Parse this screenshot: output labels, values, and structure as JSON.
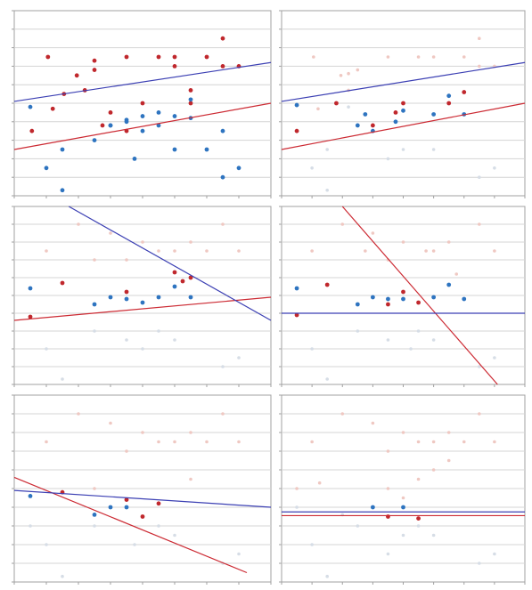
{
  "colors": {
    "red": "#c0282d",
    "blue": "#2e74c0",
    "red_faded": "#efc8c2",
    "blue_faded": "#d6dde6",
    "red_line": "#cc2a33",
    "blue_line": "#3b3fb3",
    "grid": "#d4d4d4",
    "frame": "#a0a0a0"
  },
  "chart_data": [
    {
      "type": "scatter",
      "panel": "top-left",
      "xlim": [
        0,
        16
      ],
      "ylim": [
        0,
        10
      ],
      "grid": true,
      "series": [
        {
          "color": "red",
          "points": [
            [
              1.1,
              3.5
            ],
            [
              2.1,
              7.5
            ],
            [
              2.4,
              4.7
            ],
            [
              3.1,
              5.5
            ],
            [
              3.9,
              6.5
            ],
            [
              4.4,
              5.7
            ],
            [
              5.0,
              6.8
            ],
            [
              5.0,
              7.3
            ],
            [
              5.5,
              3.8
            ],
            [
              6.0,
              4.5
            ],
            [
              7.0,
              3.5
            ],
            [
              7.0,
              7.5
            ],
            [
              8.0,
              5.0
            ],
            [
              9.0,
              7.5
            ],
            [
              10.0,
              7.5
            ],
            [
              10.0,
              7.0
            ],
            [
              11.0,
              5.0
            ],
            [
              11.0,
              5.7
            ],
            [
              12.0,
              7.5
            ],
            [
              13.0,
              8.5
            ],
            [
              13.0,
              7.0
            ],
            [
              14.0,
              7.0
            ]
          ]
        },
        {
          "color": "blue",
          "points": [
            [
              1.0,
              4.8
            ],
            [
              2.0,
              1.5
            ],
            [
              3.0,
              2.5
            ],
            [
              3.0,
              0.3
            ],
            [
              5.0,
              3.0
            ],
            [
              6.0,
              3.8
            ],
            [
              6.0,
              3.8
            ],
            [
              7.0,
              4.0
            ],
            [
              7.0,
              4.1
            ],
            [
              7.5,
              2.0
            ],
            [
              8.0,
              3.5
            ],
            [
              8.0,
              4.3
            ],
            [
              9.0,
              3.8
            ],
            [
              9.0,
              4.5
            ],
            [
              10.0,
              2.5
            ],
            [
              10.0,
              4.3
            ],
            [
              11.0,
              5.2
            ],
            [
              11.0,
              4.2
            ],
            [
              12.0,
              2.5
            ],
            [
              13.0,
              1.0
            ],
            [
              13.0,
              3.5
            ],
            [
              14.0,
              1.5
            ]
          ]
        }
      ],
      "lines": [
        {
          "color": "red",
          "from": [
            0,
            2.5
          ],
          "to": [
            16,
            5.0
          ]
        },
        {
          "color": "blue",
          "from": [
            0,
            5.1
          ],
          "to": [
            16,
            7.2
          ]
        }
      ]
    },
    {
      "type": "scatter",
      "panel": "top-right",
      "xlim": [
        0,
        16
      ],
      "ylim": [
        0,
        10
      ],
      "grid": true,
      "series": [
        {
          "color": "red",
          "points": [
            [
              1.0,
              3.5
            ],
            [
              3.6,
              5.0
            ],
            [
              6.0,
              3.8
            ],
            [
              7.5,
              4.5
            ],
            [
              8.0,
              5.0
            ],
            [
              11.0,
              5.0
            ],
            [
              12.0,
              5.6
            ]
          ]
        },
        {
          "color": "blue",
          "points": [
            [
              1.0,
              4.9
            ],
            [
              5.0,
              3.8
            ],
            [
              5.5,
              4.4
            ],
            [
              6.0,
              3.5
            ],
            [
              7.5,
              4.0
            ],
            [
              8.0,
              4.6
            ],
            [
              10.0,
              4.4
            ],
            [
              11.0,
              5.4
            ],
            [
              12.0,
              4.4
            ]
          ]
        },
        {
          "color": "red_faded",
          "points": [
            [
              2.1,
              7.5
            ],
            [
              2.4,
              4.7
            ],
            [
              3.9,
              6.5
            ],
            [
              4.4,
              5.7
            ],
            [
              5.0,
              6.8
            ],
            [
              7.0,
              7.5
            ],
            [
              9.0,
              7.5
            ],
            [
              10.0,
              7.5
            ],
            [
              12.0,
              7.5
            ],
            [
              13.0,
              8.5
            ],
            [
              13.0,
              7.0
            ],
            [
              14.0,
              7.0
            ],
            [
              4.4,
              6.6
            ]
          ]
        },
        {
          "color": "blue_faded",
          "points": [
            [
              2.0,
              1.5
            ],
            [
              3.0,
              0.3
            ],
            [
              7.0,
              2.0
            ],
            [
              8.0,
              2.5
            ],
            [
              10.0,
              2.5
            ],
            [
              13.0,
              1.0
            ],
            [
              14.0,
              1.5
            ],
            [
              3.0,
              2.5
            ],
            [
              4.4,
              4.8
            ]
          ]
        }
      ],
      "lines": [
        {
          "color": "red",
          "from": [
            0,
            2.5
          ],
          "to": [
            16,
            5.0
          ]
        },
        {
          "color": "blue",
          "from": [
            0,
            5.1
          ],
          "to": [
            16,
            7.2
          ]
        }
      ]
    },
    {
      "type": "scatter",
      "panel": "middle-left",
      "xlim": [
        0,
        16
      ],
      "ylim": [
        0,
        10
      ],
      "grid": true,
      "series": [
        {
          "color": "red",
          "points": [
            [
              1.0,
              3.8
            ],
            [
              3.0,
              5.7
            ],
            [
              7.0,
              5.2
            ],
            [
              10.0,
              6.3
            ],
            [
              10.5,
              5.8
            ],
            [
              11.0,
              6.0
            ]
          ]
        },
        {
          "color": "blue",
          "points": [
            [
              1.0,
              5.4
            ],
            [
              5.0,
              4.5
            ],
            [
              6.0,
              4.9
            ],
            [
              7.0,
              4.8
            ],
            [
              8.0,
              4.6
            ],
            [
              9.0,
              4.9
            ],
            [
              10.0,
              5.5
            ],
            [
              11.0,
              4.9
            ]
          ]
        },
        {
          "color": "red_faded",
          "points": [
            [
              2.0,
              7.5
            ],
            [
              4.0,
              9.0
            ],
            [
              5.0,
              7.0
            ],
            [
              6.0,
              8.5
            ],
            [
              7.0,
              7.0
            ],
            [
              8.0,
              8.0
            ],
            [
              9.0,
              7.5
            ],
            [
              10.0,
              7.5
            ],
            [
              11.0,
              8.0
            ],
            [
              12.0,
              7.5
            ],
            [
              13.0,
              9.0
            ],
            [
              14.0,
              7.5
            ]
          ]
        },
        {
          "color": "blue_faded",
          "points": [
            [
              2.0,
              2.0
            ],
            [
              3.0,
              0.3
            ],
            [
              5.0,
              3.0
            ],
            [
              7.0,
              2.5
            ],
            [
              8.0,
              2.0
            ],
            [
              9.0,
              3.0
            ],
            [
              10.0,
              2.5
            ],
            [
              13.0,
              1.0
            ],
            [
              14.0,
              1.5
            ]
          ]
        }
      ],
      "lines": [
        {
          "color": "red",
          "from": [
            0,
            3.6
          ],
          "to": [
            16,
            4.9
          ]
        },
        {
          "color": "blue",
          "from": [
            3.4,
            10.0
          ],
          "to": [
            16,
            3.6
          ]
        }
      ]
    },
    {
      "type": "scatter",
      "panel": "middle-right",
      "xlim": [
        0,
        16
      ],
      "ylim": [
        0,
        10
      ],
      "grid": true,
      "series": [
        {
          "color": "red",
          "points": [
            [
              1.0,
              3.9
            ],
            [
              3.0,
              5.6
            ],
            [
              7.0,
              4.5
            ],
            [
              8.0,
              5.2
            ],
            [
              9.0,
              4.6
            ]
          ]
        },
        {
          "color": "blue",
          "points": [
            [
              1.0,
              5.4
            ],
            [
              5.0,
              4.5
            ],
            [
              6.0,
              4.9
            ],
            [
              7.0,
              4.8
            ],
            [
              8.0,
              4.8
            ],
            [
              10.0,
              4.9
            ],
            [
              11.0,
              5.6
            ],
            [
              12.0,
              4.8
            ]
          ]
        },
        {
          "color": "red_faded",
          "points": [
            [
              2.0,
              7.5
            ],
            [
              4.0,
              9.0
            ],
            [
              5.5,
              7.5
            ],
            [
              6.0,
              8.5
            ],
            [
              7.0,
              7.0
            ],
            [
              8.0,
              8.0
            ],
            [
              9.5,
              7.5
            ],
            [
              10.0,
              7.5
            ],
            [
              11.0,
              8.0
            ],
            [
              11.5,
              6.2
            ],
            [
              13.0,
              9.0
            ],
            [
              14.0,
              7.5
            ]
          ]
        },
        {
          "color": "blue_faded",
          "points": [
            [
              2.0,
              2.0
            ],
            [
              3.0,
              0.3
            ],
            [
              5.0,
              3.0
            ],
            [
              7.0,
              2.5
            ],
            [
              8.5,
              2.0
            ],
            [
              9.0,
              3.0
            ],
            [
              10.0,
              2.5
            ],
            [
              13.0,
              1.0
            ],
            [
              14.0,
              1.5
            ]
          ]
        }
      ],
      "lines": [
        {
          "color": "red",
          "from": [
            4.0,
            10.0
          ],
          "to": [
            14.2,
            0.0
          ]
        },
        {
          "color": "blue",
          "from": [
            0,
            4.0
          ],
          "to": [
            16,
            4.0
          ]
        }
      ]
    },
    {
      "type": "scatter",
      "panel": "bottom-left",
      "xlim": [
        0,
        16
      ],
      "ylim": [
        0,
        10
      ],
      "grid": true,
      "series": [
        {
          "color": "red",
          "points": [
            [
              3.0,
              4.8
            ],
            [
              7.0,
              4.4
            ],
            [
              8.0,
              3.5
            ],
            [
              9.0,
              4.2
            ]
          ]
        },
        {
          "color": "blue",
          "points": [
            [
              1.0,
              4.6
            ],
            [
              5.0,
              3.6
            ],
            [
              6.0,
              4.0
            ],
            [
              7.0,
              4.0
            ]
          ]
        },
        {
          "color": "red_faded",
          "points": [
            [
              2.0,
              7.5
            ],
            [
              4.0,
              9.0
            ],
            [
              6.0,
              8.5
            ],
            [
              7.0,
              7.0
            ],
            [
              8.0,
              8.0
            ],
            [
              9.0,
              7.5
            ],
            [
              10.0,
              7.5
            ],
            [
              11.0,
              8.0
            ],
            [
              12.0,
              7.5
            ],
            [
              13.0,
              9.0
            ],
            [
              14.0,
              7.5
            ],
            [
              11.0,
              5.5
            ],
            [
              5.0,
              5.0
            ]
          ]
        },
        {
          "color": "blue_faded",
          "points": [
            [
              2.0,
              2.0
            ],
            [
              3.0,
              0.3
            ],
            [
              5.0,
              3.0
            ],
            [
              7.5,
              2.0
            ],
            [
              9.0,
              3.0
            ],
            [
              10.0,
              2.5
            ],
            [
              13.0,
              1.0
            ],
            [
              14.0,
              1.5
            ],
            [
              1.0,
              3.0
            ]
          ]
        }
      ],
      "lines": [
        {
          "color": "red",
          "from": [
            0,
            5.6
          ],
          "to": [
            14.5,
            0.5
          ]
        },
        {
          "color": "blue",
          "from": [
            0,
            4.9
          ],
          "to": [
            16,
            4.0
          ]
        }
      ]
    },
    {
      "type": "scatter",
      "panel": "bottom-right",
      "xlim": [
        0,
        16
      ],
      "ylim": [
        0,
        10
      ],
      "grid": true,
      "series": [
        {
          "color": "red",
          "points": [
            [
              7.0,
              3.5
            ],
            [
              9.0,
              3.4
            ]
          ]
        },
        {
          "color": "blue",
          "points": [
            [
              6.0,
              4.0
            ],
            [
              8.0,
              4.0
            ]
          ]
        },
        {
          "color": "red_faded",
          "points": [
            [
              2.0,
              7.5
            ],
            [
              4.0,
              9.0
            ],
            [
              6.0,
              8.5
            ],
            [
              7.0,
              7.0
            ],
            [
              8.0,
              8.0
            ],
            [
              9.0,
              7.5
            ],
            [
              10.0,
              7.5
            ],
            [
              11.0,
              8.0
            ],
            [
              12.0,
              7.5
            ],
            [
              13.0,
              9.0
            ],
            [
              14.0,
              7.5
            ],
            [
              1.0,
              5.0
            ],
            [
              2.5,
              5.3
            ],
            [
              7.0,
              5.0
            ],
            [
              8.0,
              4.5
            ],
            [
              9.0,
              5.5
            ],
            [
              10.0,
              6.0
            ],
            [
              11.0,
              6.5
            ]
          ]
        },
        {
          "color": "blue_faded",
          "points": [
            [
              2.0,
              2.0
            ],
            [
              3.0,
              0.3
            ],
            [
              5.0,
              3.0
            ],
            [
              7.0,
              1.5
            ],
            [
              8.0,
              2.5
            ],
            [
              9.0,
              3.0
            ],
            [
              10.0,
              2.5
            ],
            [
              13.0,
              1.0
            ],
            [
              14.0,
              1.5
            ],
            [
              1.0,
              4.0
            ],
            [
              4.0,
              3.6
            ]
          ]
        }
      ],
      "lines": [
        {
          "color": "red",
          "from": [
            0,
            3.55
          ],
          "to": [
            16,
            3.55
          ]
        },
        {
          "color": "blue",
          "from": [
            0,
            3.75
          ],
          "to": [
            16,
            3.75
          ]
        }
      ]
    }
  ]
}
